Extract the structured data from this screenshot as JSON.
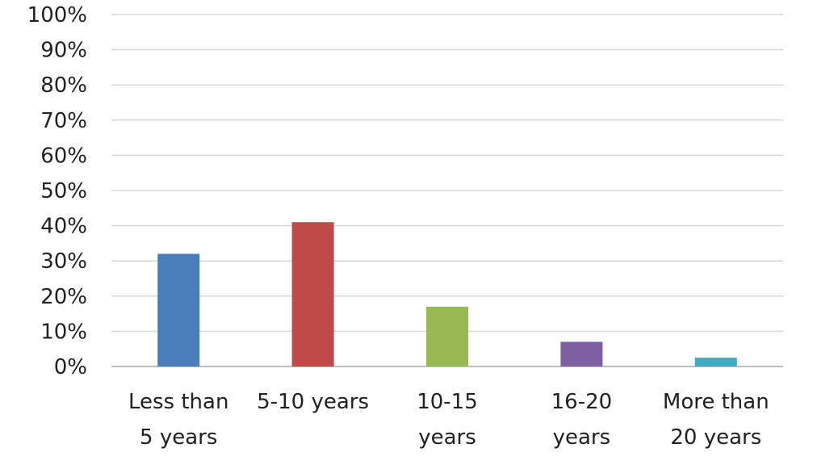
{
  "chart_data": {
    "type": "bar",
    "title": "",
    "xlabel": "",
    "ylabel": "",
    "categories": [
      [
        "Less than",
        "5 years"
      ],
      [
        "5-10 years"
      ],
      [
        "10-15",
        "years"
      ],
      [
        "16-20",
        "years"
      ],
      [
        "More than",
        "20 years"
      ]
    ],
    "values": [
      32,
      41,
      17,
      7,
      2.5
    ],
    "ylim": [
      0,
      100
    ],
    "yticks": [
      0,
      10,
      20,
      30,
      40,
      50,
      60,
      70,
      80,
      90,
      100
    ],
    "ytick_labels": [
      "0%",
      "10%",
      "20%",
      "30%",
      "40%",
      "50%",
      "60%",
      "70%",
      "80%",
      "90%",
      "100%"
    ],
    "colors": [
      "#4a7ebb",
      "#be4b48",
      "#98b954",
      "#7d60a0",
      "#46aac5"
    ],
    "grid": true,
    "legend": "none"
  }
}
